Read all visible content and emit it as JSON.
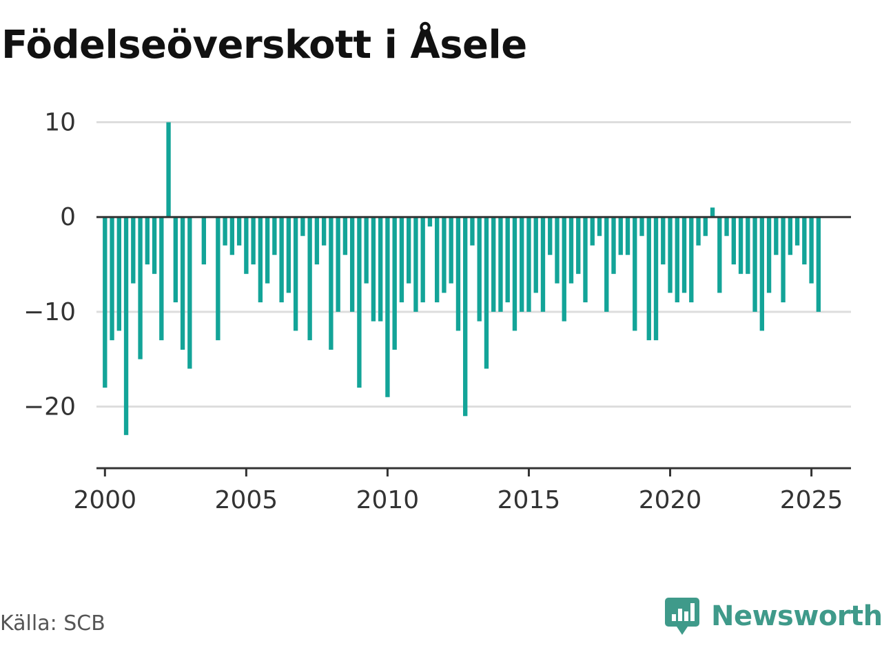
{
  "title": "Födelseöverskott i Åsele",
  "source": "Källa: SCB",
  "brand": {
    "name": "Newsworthy",
    "icon": "newsworthy-logo-icon"
  },
  "colors": {
    "bar": "#13a498",
    "grid": "#dddddd",
    "axis": "#333333",
    "brand": "#3f9a8a"
  },
  "chart_data": {
    "type": "bar",
    "title": "Födelseöverskott i Åsele",
    "xlabel": "",
    "ylabel": "",
    "ylim": [
      -26.5,
      12
    ],
    "xlim": [
      1999.7,
      2026.4
    ],
    "grid": true,
    "y_ticks": [
      10,
      0,
      -10,
      -20
    ],
    "y_tick_labels": [
      "10",
      "0",
      "−10",
      "−20"
    ],
    "x_ticks": [
      2000,
      2005,
      2010,
      2015,
      2020,
      2025
    ],
    "x_tick_labels": [
      "2000",
      "2005",
      "2010",
      "2015",
      "2020",
      "2025"
    ],
    "period": "quarterly",
    "start": "2000 Q1",
    "values": [
      -18,
      -13,
      -12,
      -23,
      -7,
      -15,
      -5,
      -6,
      -13,
      10,
      -9,
      -14,
      -16,
      0,
      -5,
      0,
      -13,
      -3,
      -4,
      -3,
      -6,
      -5,
      -9,
      -7,
      -4,
      -9,
      -8,
      -12,
      -2,
      -13,
      -5,
      -3,
      -14,
      -10,
      -4,
      -10,
      -18,
      -7,
      -11,
      -11,
      -19,
      -14,
      -9,
      -7,
      -10,
      -9,
      -1,
      -9,
      -8,
      -7,
      -12,
      -21,
      -3,
      -11,
      -16,
      -10,
      -10,
      -9,
      -12,
      -10,
      -10,
      -8,
      -10,
      -4,
      -7,
      -11,
      -7,
      -6,
      -9,
      -3,
      -2,
      -10,
      -6,
      -4,
      -4,
      -12,
      -2,
      -13,
      -13,
      -5,
      -8,
      -9,
      -8,
      -9,
      -3,
      -2,
      1,
      -8,
      -2,
      -5,
      -6,
      -6,
      -10,
      -12,
      -8,
      -4,
      -9,
      -4,
      -3,
      -5,
      -7,
      -10
    ]
  }
}
